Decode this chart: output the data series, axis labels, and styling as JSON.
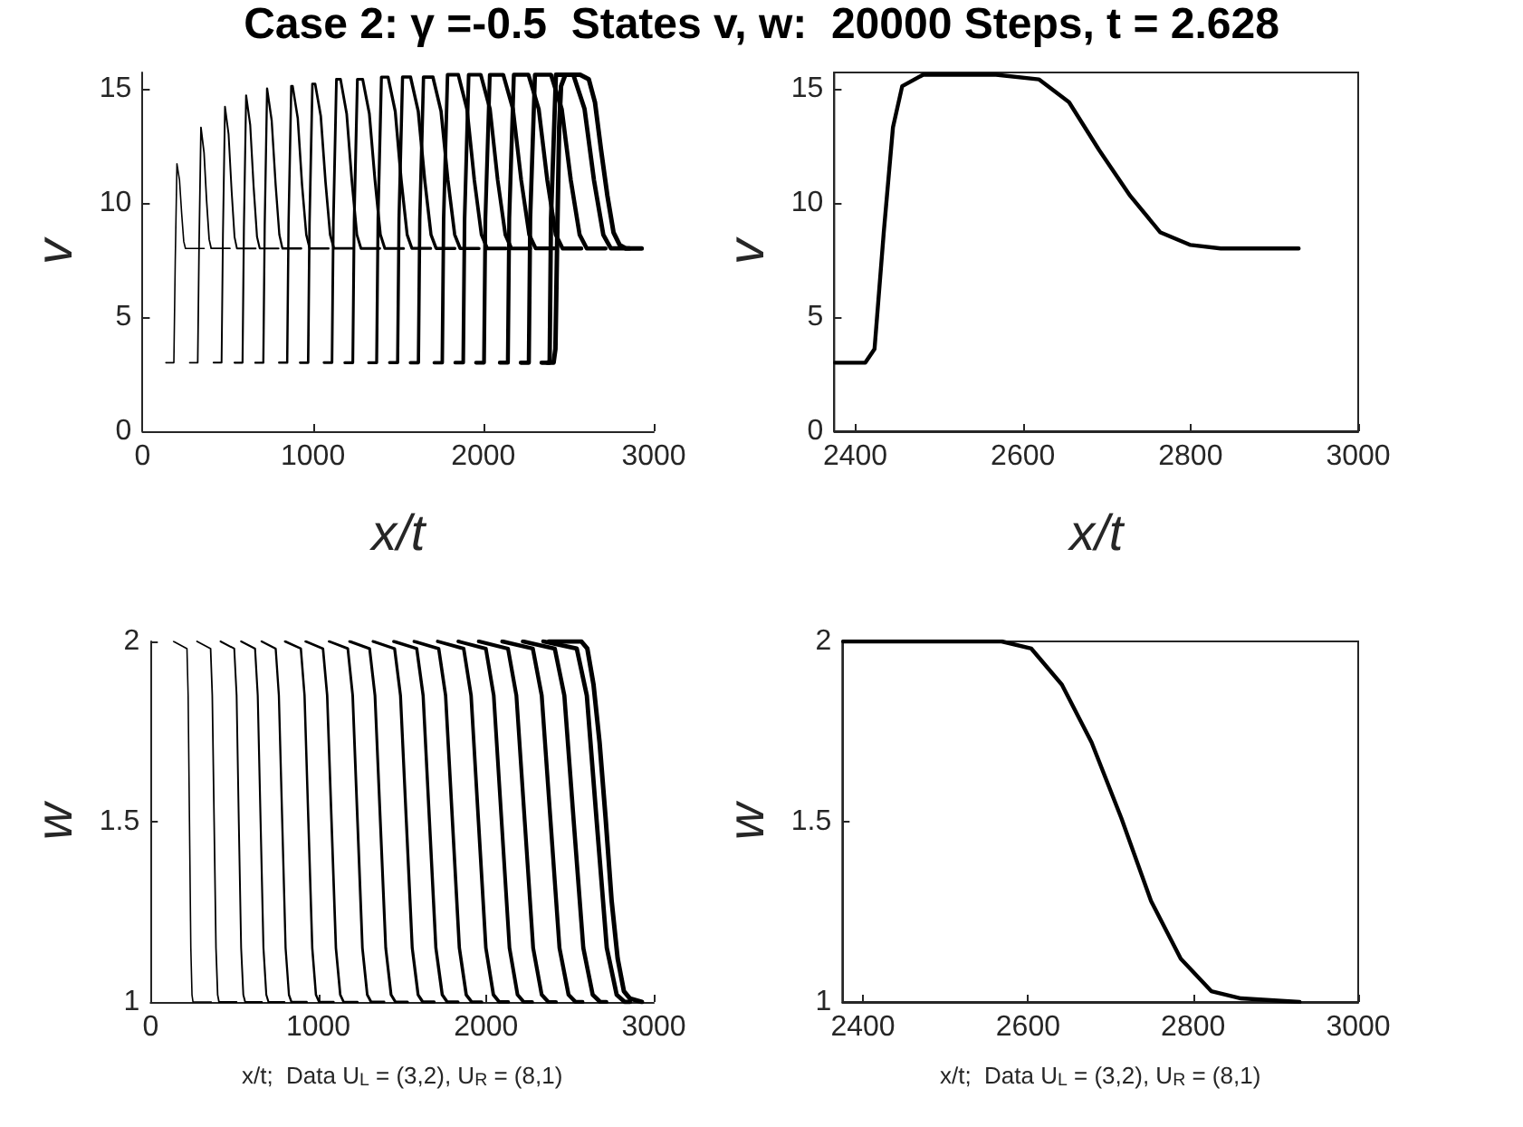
{
  "chart_data": [
    {
      "type": "line",
      "title": "Case 2: γ =-0.5  States v, w:  20000 Steps, t = 2.628",
      "xlabel": "x/t",
      "ylabel": "v",
      "xlim": [
        0,
        3000
      ],
      "ylim": [
        0,
        15.7
      ],
      "xticks": [
        0,
        1000,
        2000,
        3000
      ],
      "yticks": [
        0,
        5,
        10,
        15
      ],
      "series": [
        {
          "color": "#000000",
          "x": [
            137,
            184,
            192,
            202,
            217,
            230,
            242,
            252,
            362
          ],
          "values": [
            3,
            3,
            7.4,
            11.7,
            11.0,
            9.5,
            8.3,
            8,
            8
          ]
        },
        {
          "color": "#000000",
          "x": [
            277,
            324,
            332,
            343,
            361,
            376,
            391,
            403,
            513
          ],
          "values": [
            3,
            3,
            8.2,
            13.3,
            12.2,
            10.1,
            8.4,
            8,
            8
          ]
        },
        {
          "color": "#000000",
          "x": [
            417,
            464,
            472,
            484,
            505,
            523,
            540,
            554,
            664
          ],
          "values": [
            3,
            3,
            8.6,
            14.2,
            13.0,
            10.5,
            8.5,
            8,
            8
          ]
        },
        {
          "color": "#000000",
          "x": [
            540,
            587,
            595,
            608,
            632,
            652,
            672,
            688,
            798
          ],
          "values": [
            3,
            3,
            8.9,
            14.7,
            13.4,
            10.7,
            8.5,
            8,
            8
          ]
        },
        {
          "color": "#000000",
          "x": [
            662,
            709,
            717,
            731,
            758,
            781,
            803,
            821,
            931
          ],
          "values": [
            3,
            3,
            9.0,
            15.0,
            13.6,
            10.8,
            8.6,
            8,
            8
          ]
        },
        {
          "color": "#000000",
          "x": [
            802,
            849,
            857,
            873,
            881,
            911,
            936,
            961,
            981,
            1091
          ],
          "values": [
            3,
            3,
            9.1,
            15.1,
            15.1,
            13.7,
            10.8,
            8.6,
            8,
            8
          ]
        },
        {
          "color": "#000000",
          "x": [
            925,
            972,
            980,
            997,
            1013,
            1046,
            1074,
            1101,
            1123,
            1233
          ],
          "values": [
            3,
            3,
            9.1,
            15.2,
            15.2,
            13.8,
            10.9,
            8.6,
            8,
            8
          ]
        },
        {
          "color": "#000000",
          "x": [
            1065,
            1112,
            1120,
            1138,
            1162,
            1198,
            1228,
            1258,
            1282,
            1392
          ],
          "values": [
            3,
            3,
            9.2,
            15.4,
            15.4,
            13.9,
            11.0,
            8.6,
            8,
            8
          ]
        },
        {
          "color": "#000000",
          "x": [
            1187,
            1234,
            1242,
            1261,
            1292,
            1331,
            1364,
            1396,
            1422,
            1532
          ],
          "values": [
            3,
            3,
            9.2,
            15.4,
            15.4,
            13.9,
            11.0,
            8.6,
            8,
            8
          ]
        },
        {
          "color": "#000000",
          "x": [
            1327,
            1374,
            1382,
            1402,
            1441,
            1483,
            1518,
            1553,
            1581,
            1691
          ],
          "values": [
            3,
            3,
            9.3,
            15.5,
            15.5,
            14.0,
            11.0,
            8.6,
            8,
            8
          ]
        },
        {
          "color": "#000000",
          "x": [
            1450,
            1497,
            1505,
            1526,
            1573,
            1618,
            1656,
            1693,
            1723,
            1833
          ],
          "values": [
            3,
            3,
            9.3,
            15.5,
            15.5,
            14.0,
            11.0,
            8.6,
            8,
            8
          ]
        },
        {
          "color": "#000000",
          "x": [
            1572,
            1619,
            1627,
            1649,
            1704,
            1752,
            1792,
            1832,
            1864,
            1974
          ],
          "values": [
            3,
            3,
            9.3,
            15.5,
            15.5,
            14.0,
            11.0,
            8.6,
            8,
            8
          ]
        },
        {
          "color": "#000000",
          "x": [
            1712,
            1759,
            1767,
            1790,
            1853,
            1904,
            1947,
            1989,
            2023,
            2133
          ],
          "values": [
            3,
            3,
            9.3,
            15.6,
            15.6,
            14.1,
            11.0,
            8.6,
            8,
            8
          ]
        },
        {
          "color": "#000000",
          "x": [
            1835,
            1882,
            1890,
            1914,
            1985,
            2039,
            2084,
            2129,
            2165,
            2275
          ],
          "values": [
            3,
            3,
            9.3,
            15.6,
            15.6,
            14.1,
            11.0,
            8.6,
            8,
            8
          ]
        },
        {
          "color": "#000000",
          "x": [
            1957,
            2004,
            2012,
            2038,
            2117,
            2174,
            2222,
            2269,
            2307,
            2417
          ],
          "values": [
            3,
            3,
            9.3,
            15.6,
            15.6,
            14.1,
            11.0,
            8.6,
            8,
            8
          ]
        },
        {
          "color": "#000000",
          "x": [
            2097,
            2144,
            2152,
            2179,
            2265,
            2325,
            2375,
            2425,
            2465,
            2575
          ],
          "values": [
            3,
            3,
            9.3,
            15.6,
            15.6,
            14.1,
            11.0,
            8.6,
            8,
            8
          ]
        },
        {
          "color": "#000000",
          "x": [
            2220,
            2267,
            2275,
            2303,
            2397,
            2460,
            2513,
            2565,
            2607,
            2717
          ],
          "values": [
            3,
            3,
            9.3,
            15.6,
            15.6,
            14.1,
            11.0,
            8.6,
            8,
            8
          ]
        },
        {
          "color": "#000000",
          "x": [
            2342,
            2389,
            2397,
            2426,
            2528,
            2594,
            2649,
            2704,
            2748,
            2858
          ],
          "values": [
            3,
            3,
            9.3,
            15.6,
            15.6,
            14.1,
            11.0,
            8.6,
            8,
            8
          ]
        },
        {
          "color": "#000000",
          "x": [
            2376,
            2412,
            2423,
            2434,
            2445,
            2456,
            2481,
            2568,
            2619,
            2655,
            2691,
            2728,
            2764,
            2800,
            2836,
            2929
          ],
          "values": [
            3,
            3,
            3.6,
            8.7,
            13.3,
            15.1,
            15.6,
            15.6,
            15.4,
            14.4,
            12.3,
            10.3,
            8.7,
            8.15,
            8.0,
            8
          ]
        }
      ]
    },
    {
      "type": "line",
      "xlabel": "x/t",
      "ylabel": "v",
      "xlim": [
        2375,
        3000
      ],
      "ylim": [
        0,
        15.7
      ],
      "xticks": [
        2400,
        2600,
        2800,
        3000
      ],
      "yticks": [
        0,
        5,
        10,
        15
      ],
      "series": [
        {
          "color": "#000000",
          "x": [
            2376,
            2412,
            2423,
            2434,
            2445,
            2456,
            2481,
            2568,
            2619,
            2655,
            2691,
            2728,
            2764,
            2800,
            2836,
            2929
          ],
          "values": [
            3,
            3,
            3.6,
            8.7,
            13.3,
            15.1,
            15.6,
            15.6,
            15.4,
            14.4,
            12.3,
            10.3,
            8.7,
            8.15,
            8.0,
            8
          ]
        }
      ]
    },
    {
      "type": "line",
      "xlabel": "x/t;  Data U$_{L}$ = (3,2), U$_{R}$ = (8,1)",
      "ylabel": "w",
      "xlim": [
        0,
        3000
      ],
      "ylim": [
        1,
        2
      ],
      "xticks": [
        0,
        1000,
        2000,
        3000
      ],
      "yticks": [
        1,
        1.5,
        2
      ],
      "series": [
        {
          "color": "#000000",
          "x": [
            137,
            217,
            224,
            232,
            240,
            247,
            253,
            362
          ],
          "values": [
            2,
            1.98,
            1.85,
            1.5,
            1.15,
            1.02,
            1,
            1
          ]
        },
        {
          "color": "#000000",
          "x": [
            277,
            358,
            368,
            379,
            390,
            400,
            408,
            513
          ],
          "values": [
            2,
            1.98,
            1.85,
            1.5,
            1.15,
            1.02,
            1,
            1
          ]
        },
        {
          "color": "#000000",
          "x": [
            417,
            499,
            513,
            526,
            540,
            553,
            564,
            664
          ],
          "values": [
            2,
            1.98,
            1.85,
            1.5,
            1.15,
            1.02,
            1,
            1
          ]
        },
        {
          "color": "#000000",
          "x": [
            540,
            623,
            639,
            656,
            673,
            690,
            703,
            798
          ],
          "values": [
            2,
            1.98,
            1.85,
            1.5,
            1.15,
            1.02,
            1,
            1
          ]
        },
        {
          "color": "#000000",
          "x": [
            662,
            746,
            765,
            785,
            805,
            825,
            840,
            931
          ],
          "values": [
            2,
            1.98,
            1.85,
            1.5,
            1.15,
            1.02,
            1,
            1
          ]
        },
        {
          "color": "#000000",
          "x": [
            802,
            896,
            918,
            941,
            964,
            986,
            1005,
            1091
          ],
          "values": [
            2,
            1.98,
            1.85,
            1.5,
            1.15,
            1.02,
            1,
            1
          ]
        },
        {
          "color": "#000000",
          "x": [
            925,
            1028,
            1053,
            1079,
            1105,
            1131,
            1151,
            1233
          ],
          "values": [
            2,
            1.98,
            1.85,
            1.5,
            1.15,
            1.02,
            1,
            1
          ]
        },
        {
          "color": "#000000",
          "x": [
            1065,
            1176,
            1205,
            1234,
            1263,
            1292,
            1315,
            1392
          ],
          "values": [
            2,
            1.98,
            1.85,
            1.5,
            1.15,
            1.02,
            1,
            1
          ]
        },
        {
          "color": "#000000",
          "x": [
            1187,
            1306,
            1338,
            1370,
            1402,
            1434,
            1460,
            1532
          ],
          "values": [
            2,
            1.98,
            1.85,
            1.5,
            1.15,
            1.02,
            1,
            1
          ]
        },
        {
          "color": "#000000",
          "x": [
            1327,
            1455,
            1490,
            1525,
            1560,
            1595,
            1623,
            1691
          ],
          "values": [
            2,
            1.98,
            1.85,
            1.5,
            1.15,
            1.02,
            1,
            1
          ]
        },
        {
          "color": "#000000",
          "x": [
            1450,
            1587,
            1625,
            1663,
            1701,
            1739,
            1769,
            1833
          ],
          "values": [
            2,
            1.98,
            1.85,
            1.5,
            1.15,
            1.02,
            1,
            1
          ]
        },
        {
          "color": "#000000",
          "x": [
            1572,
            1718,
            1759,
            1800,
            1841,
            1882,
            1915,
            1974
          ],
          "values": [
            2,
            1.98,
            1.85,
            1.5,
            1.15,
            1.02,
            1,
            1
          ]
        },
        {
          "color": "#000000",
          "x": [
            1712,
            1867,
            1911,
            1955,
            1999,
            2044,
            2079,
            2133
          ],
          "values": [
            2,
            1.98,
            1.85,
            1.5,
            1.15,
            1.02,
            1,
            1
          ]
        },
        {
          "color": "#000000",
          "x": [
            1835,
            1999,
            2046,
            2093,
            2140,
            2188,
            2225,
            2275
          ],
          "values": [
            2,
            1.98,
            1.85,
            1.5,
            1.15,
            1.02,
            1,
            1
          ]
        },
        {
          "color": "#000000",
          "x": [
            1957,
            2131,
            2181,
            2231,
            2281,
            2332,
            2372,
            2417
          ],
          "values": [
            2,
            1.98,
            1.85,
            1.5,
            1.15,
            1.02,
            1,
            1
          ]
        },
        {
          "color": "#000000",
          "x": [
            2097,
            2279,
            2332,
            2385,
            2438,
            2492,
            2534,
            2575
          ],
          "values": [
            2,
            1.98,
            1.85,
            1.5,
            1.15,
            1.02,
            1,
            1
          ]
        },
        {
          "color": "#000000",
          "x": [
            2220,
            2410,
            2467,
            2523,
            2580,
            2636,
            2681,
            2717
          ],
          "values": [
            2,
            1.98,
            1.85,
            1.5,
            1.15,
            1.02,
            1,
            1
          ]
        },
        {
          "color": "#000000",
          "x": [
            2342,
            2541,
            2601,
            2660,
            2720,
            2779,
            2827,
            2858
          ],
          "values": [
            2,
            1.98,
            1.85,
            1.5,
            1.15,
            1.02,
            1,
            1
          ]
        },
        {
          "color": "#000000",
          "x": [
            2376,
            2568,
            2604,
            2641,
            2677,
            2713,
            2749,
            2785,
            2822,
            2858,
            2929
          ],
          "values": [
            2,
            2,
            1.98,
            1.88,
            1.72,
            1.51,
            1.28,
            1.12,
            1.03,
            1.01,
            1
          ]
        }
      ]
    },
    {
      "type": "line",
      "xlabel": "x/t;  Data U$_{L}$ = (3,2), U$_{R}$ = (8,1)",
      "ylabel": "w",
      "xlim": [
        2375,
        3000
      ],
      "ylim": [
        1,
        2
      ],
      "xticks": [
        2400,
        2600,
        2800,
        3000
      ],
      "yticks": [
        1,
        1.5,
        2
      ],
      "series": [
        {
          "color": "#000000",
          "x": [
            2376,
            2568,
            2604,
            2641,
            2677,
            2713,
            2749,
            2785,
            2822,
            2858,
            2929
          ],
          "values": [
            2,
            2,
            1.98,
            1.88,
            1.72,
            1.51,
            1.28,
            1.12,
            1.03,
            1.01,
            1
          ]
        }
      ]
    }
  ]
}
